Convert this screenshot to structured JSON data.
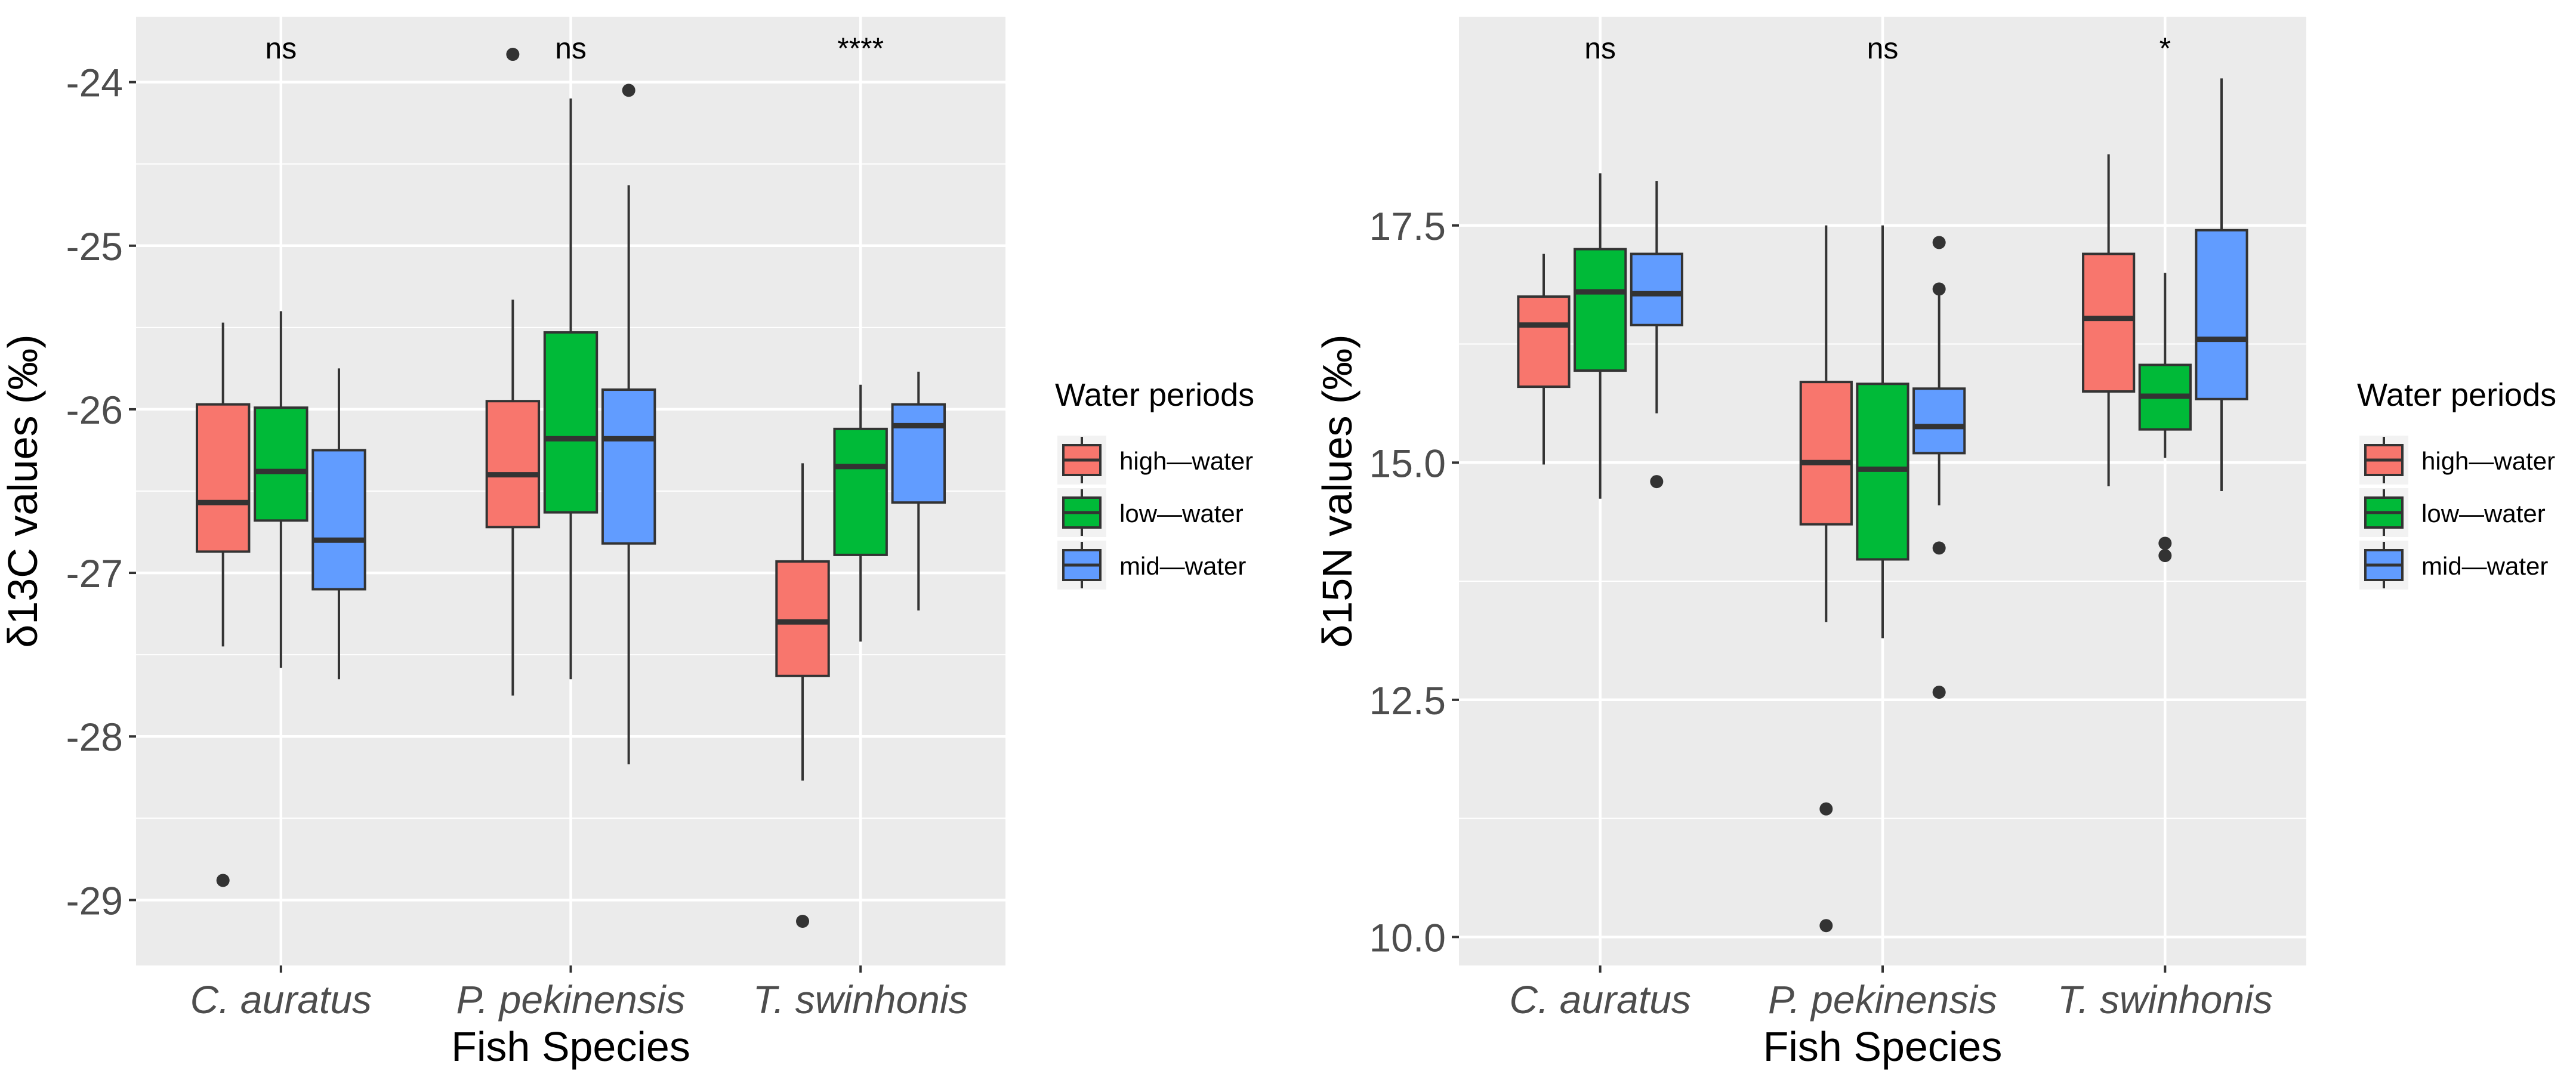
{
  "chart_data": [
    {
      "type": "box",
      "xlabel": "Fish Species",
      "ylabel": "δ13C values (‰)",
      "ylim": [
        -29.4,
        -23.6
      ],
      "yticks": [
        -24,
        -25,
        -26,
        -27,
        -28,
        -29
      ],
      "ytick_labels": [
        "-24",
        "-25",
        "-26",
        "-27",
        "-28",
        "-29"
      ],
      "grid": true,
      "categories": [
        "C. auratus",
        "P. pekinensis",
        "T. swinhonis"
      ],
      "significance": [
        "ns",
        "ns",
        "****"
      ],
      "series": [
        {
          "name": "high—water",
          "color": "#F8766D",
          "boxes": [
            {
              "min": -27.45,
              "q1": -26.87,
              "median": -26.57,
              "q3": -25.97,
              "max": -25.47,
              "outliers": [
                -28.88
              ]
            },
            {
              "min": -27.75,
              "q1": -26.72,
              "median": -26.4,
              "q3": -25.95,
              "max": -25.33,
              "outliers": [
                -23.83
              ]
            },
            {
              "min": -28.27,
              "q1": -27.63,
              "median": -27.3,
              "q3": -26.93,
              "max": -26.33,
              "outliers": [
                -29.13
              ]
            }
          ]
        },
        {
          "name": "low—water",
          "color": "#00BA38",
          "boxes": [
            {
              "min": -27.58,
              "q1": -26.68,
              "median": -26.38,
              "q3": -25.99,
              "max": -25.4,
              "outliers": []
            },
            {
              "min": -27.65,
              "q1": -26.63,
              "median": -26.18,
              "q3": -25.53,
              "max": -24.1,
              "outliers": []
            },
            {
              "min": -27.42,
              "q1": -26.89,
              "median": -26.35,
              "q3": -26.12,
              "max": -25.85,
              "outliers": []
            }
          ]
        },
        {
          "name": "mid—water",
          "color": "#619CFF",
          "boxes": [
            {
              "min": -27.65,
              "q1": -27.1,
              "median": -26.8,
              "q3": -26.25,
              "max": -25.75,
              "outliers": []
            },
            {
              "min": -28.17,
              "q1": -26.82,
              "median": -26.18,
              "q3": -25.88,
              "max": -24.63,
              "outliers": [
                -24.05
              ]
            },
            {
              "min": -27.23,
              "q1": -26.57,
              "median": -26.1,
              "q3": -25.97,
              "max": -25.77,
              "outliers": []
            }
          ]
        }
      ],
      "legend": {
        "title": "Water periods",
        "placement": "right",
        "entries": [
          "high—water",
          "low—water",
          "mid—water"
        ]
      }
    },
    {
      "type": "box",
      "xlabel": "Fish Species",
      "ylabel": "δ15N values (‰)",
      "ylim": [
        9.7,
        19.7
      ],
      "yticks": [
        17.5,
        15.0,
        12.5,
        10.0
      ],
      "ytick_labels": [
        "17.5",
        "15.0",
        "12.5",
        "10.0"
      ],
      "grid": true,
      "categories": [
        "C. auratus",
        "P. pekinensis",
        "T. swinhonis"
      ],
      "significance": [
        "ns",
        "ns",
        "*"
      ],
      "series": [
        {
          "name": "high—water",
          "color": "#F8766D",
          "boxes": [
            {
              "min": 14.98,
              "q1": 15.8,
              "median": 16.45,
              "q3": 16.75,
              "max": 17.2,
              "outliers": []
            },
            {
              "min": 13.32,
              "q1": 14.35,
              "median": 15.0,
              "q3": 15.85,
              "max": 17.5,
              "outliers": [
                11.35,
                10.12
              ]
            },
            {
              "min": 14.75,
              "q1": 15.75,
              "median": 16.52,
              "q3": 17.2,
              "max": 18.25,
              "outliers": []
            }
          ]
        },
        {
          "name": "low—water",
          "color": "#00BA38",
          "boxes": [
            {
              "min": 14.62,
              "q1": 15.97,
              "median": 16.8,
              "q3": 17.25,
              "max": 18.05,
              "outliers": []
            },
            {
              "min": 13.15,
              "q1": 13.98,
              "median": 14.93,
              "q3": 15.83,
              "max": 17.5,
              "outliers": []
            },
            {
              "min": 15.05,
              "q1": 15.35,
              "median": 15.7,
              "q3": 16.03,
              "max": 17.0,
              "outliers": [
                14.15,
                14.02
              ]
            }
          ]
        },
        {
          "name": "mid—water",
          "color": "#619CFF",
          "boxes": [
            {
              "min": 15.52,
              "q1": 16.45,
              "median": 16.78,
              "q3": 17.2,
              "max": 17.97,
              "outliers": [
                14.8
              ]
            },
            {
              "min": 14.55,
              "q1": 15.1,
              "median": 15.38,
              "q3": 15.78,
              "max": 16.77,
              "outliers": [
                17.32,
                16.83,
                14.1,
                12.58
              ]
            },
            {
              "min": 14.7,
              "q1": 15.67,
              "median": 16.3,
              "q3": 17.45,
              "max": 19.05,
              "outliers": []
            }
          ]
        }
      ],
      "legend": {
        "title": "Water periods",
        "placement": "right",
        "entries": [
          "high—water",
          "low—water",
          "mid—water"
        ]
      }
    }
  ]
}
